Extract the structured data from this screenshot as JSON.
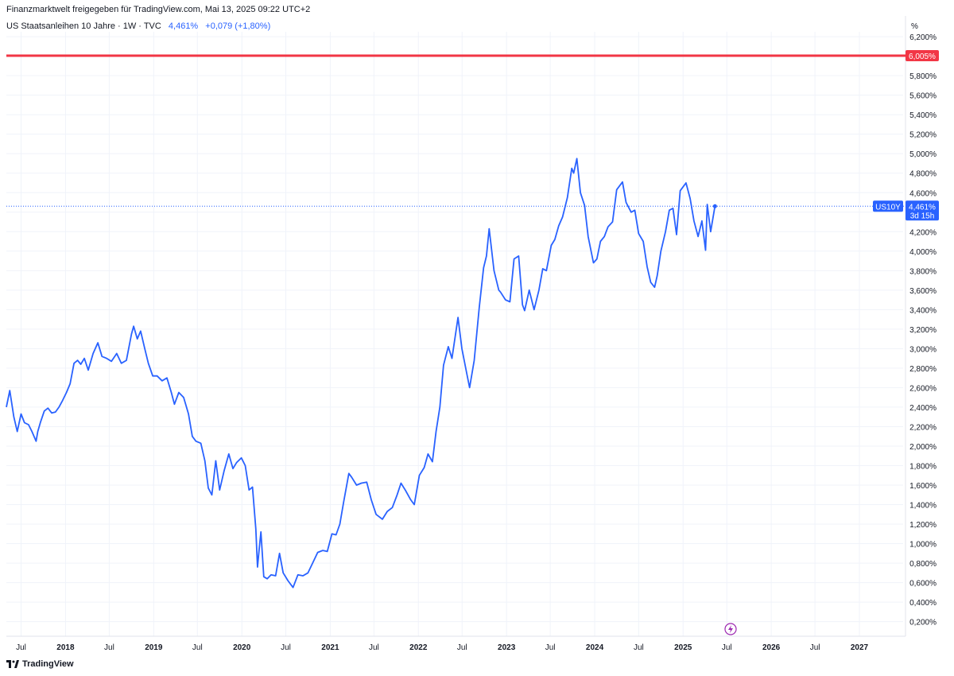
{
  "header": {
    "attribution": "Finanzmarktwelt freigegeben für TradingView.com, Mai 13, 2025 09:22 UTC+2",
    "symbol": "US Staatsanleihen 10 Jahre · 1W · TVC",
    "last_value": "4,461%",
    "change": "+0,079 (+1,80%)"
  },
  "footer": {
    "logo_text": "TradingView"
  },
  "colors": {
    "line": "#2962ff",
    "resistance": "#f23645",
    "grid": "#f0f3fa",
    "last_label_bg": "#2962ff"
  },
  "chart_data": {
    "type": "line",
    "unit_label": "%",
    "ylim": [
      0.05,
      6.25
    ],
    "y_ticks": [
      "0,200%",
      "0,400%",
      "0,600%",
      "0,800%",
      "1,000%",
      "1,200%",
      "1,400%",
      "1,600%",
      "1,800%",
      "2,000%",
      "2,200%",
      "2,400%",
      "2,600%",
      "2,800%",
      "3,000%",
      "3,200%",
      "3,400%",
      "3,600%",
      "3,800%",
      "4,000%",
      "4,200%",
      "4,400%",
      "4,600%",
      "4,800%",
      "5,000%",
      "5,200%",
      "5,400%",
      "5,600%",
      "5,800%",
      "6,200%"
    ],
    "y_tick_values": [
      0.2,
      0.4,
      0.6,
      0.8,
      1.0,
      1.2,
      1.4,
      1.6,
      1.8,
      2.0,
      2.2,
      2.4,
      2.6,
      2.8,
      3.0,
      3.2,
      3.4,
      3.6,
      3.8,
      4.0,
      4.2,
      4.4,
      4.6,
      4.8,
      5.0,
      5.2,
      5.4,
      5.6,
      5.8,
      6.2
    ],
    "x_ticks": [
      "Jul",
      "2018",
      "Jul",
      "2019",
      "Jul",
      "2020",
      "Jul",
      "2021",
      "Jul",
      "2022",
      "Jul",
      "2023",
      "Jul",
      "2024",
      "Jul",
      "2025",
      "Jul",
      "2026",
      "Jul",
      "2027"
    ],
    "x_tick_values": [
      "2017-07-01",
      "2018-01-01",
      "2018-07-01",
      "2019-01-01",
      "2019-07-01",
      "2020-01-01",
      "2020-07-01",
      "2021-01-01",
      "2021-07-01",
      "2022-01-01",
      "2022-07-01",
      "2023-01-01",
      "2023-07-01",
      "2024-01-01",
      "2024-07-01",
      "2025-01-01",
      "2025-07-01",
      "2026-01-01",
      "2026-07-01",
      "2027-01-01"
    ],
    "horizontal_line": {
      "value": 6.005,
      "label": "6,005%"
    },
    "last_point_label": {
      "symbol": "US10Y",
      "value": "4,461%",
      "countdown": "3d 15h",
      "y": 4.461
    },
    "series": [
      {
        "x": [
          "2017-05-01",
          "2017-05-15",
          "2017-06-01",
          "2017-06-15",
          "2017-07-01",
          "2017-07-15",
          "2017-08-01",
          "2017-08-15",
          "2017-09-01",
          "2017-09-08",
          "2017-09-20",
          "2017-10-05",
          "2017-10-20",
          "2017-11-05",
          "2017-11-20",
          "2017-12-05",
          "2017-12-20",
          "2018-01-05",
          "2018-01-20",
          "2018-02-05",
          "2018-02-20",
          "2018-03-05",
          "2018-03-20",
          "2018-04-05",
          "2018-04-25",
          "2018-05-15",
          "2018-06-01",
          "2018-06-20",
          "2018-07-10",
          "2018-08-01",
          "2018-08-20",
          "2018-09-10",
          "2018-10-01",
          "2018-10-10",
          "2018-10-25",
          "2018-11-08",
          "2018-11-25",
          "2018-12-10",
          "2018-12-28",
          "2019-01-15",
          "2019-02-05",
          "2019-02-25",
          "2019-03-15",
          "2019-03-28",
          "2019-04-15",
          "2019-05-05",
          "2019-05-25",
          "2019-06-10",
          "2019-06-25",
          "2019-07-15",
          "2019-08-01",
          "2019-08-15",
          "2019-08-30",
          "2019-09-15",
          "2019-10-01",
          "2019-10-20",
          "2019-11-08",
          "2019-11-25",
          "2019-12-10",
          "2019-12-30",
          "2020-01-15",
          "2020-01-31",
          "2020-02-14",
          "2020-02-28",
          "2020-03-06",
          "2020-03-13",
          "2020-03-20",
          "2020-04-01",
          "2020-04-15",
          "2020-05-01",
          "2020-05-20",
          "2020-06-05",
          "2020-06-20",
          "2020-07-10",
          "2020-07-31",
          "2020-08-20",
          "2020-09-10",
          "2020-10-01",
          "2020-10-20",
          "2020-11-10",
          "2020-12-01",
          "2020-12-20",
          "2021-01-08",
          "2021-01-25",
          "2021-02-10",
          "2021-02-25",
          "2021-03-19",
          "2021-03-31",
          "2021-04-20",
          "2021-05-10",
          "2021-06-01",
          "2021-06-20",
          "2021-07-10",
          "2021-07-20",
          "2021-08-05",
          "2021-08-25",
          "2021-09-15",
          "2021-10-05",
          "2021-10-21",
          "2021-11-10",
          "2021-11-30",
          "2021-12-15",
          "2022-01-05",
          "2022-01-25",
          "2022-02-10",
          "2022-02-28",
          "2022-03-15",
          "2022-03-31",
          "2022-04-15",
          "2022-05-05",
          "2022-05-20",
          "2022-06-14",
          "2022-06-30",
          "2022-07-20",
          "2022-08-01",
          "2022-08-20",
          "2022-09-10",
          "2022-09-28",
          "2022-10-10",
          "2022-10-21",
          "2022-11-10",
          "2022-11-30",
          "2022-12-07",
          "2022-12-28",
          "2023-01-15",
          "2023-02-01",
          "2023-02-20",
          "2023-03-08",
          "2023-03-17",
          "2023-04-05",
          "2023-04-25",
          "2023-05-15",
          "2023-05-31",
          "2023-06-15",
          "2023-07-05",
          "2023-07-20",
          "2023-08-05",
          "2023-08-21",
          "2023-09-10",
          "2023-09-28",
          "2023-10-06",
          "2023-10-19",
          "2023-11-03",
          "2023-11-20",
          "2023-12-05",
          "2023-12-27",
          "2024-01-10",
          "2024-01-25",
          "2024-02-10",
          "2024-02-25",
          "2024-03-15",
          "2024-04-01",
          "2024-04-25",
          "2024-05-10",
          "2024-05-31",
          "2024-06-15",
          "2024-07-01",
          "2024-07-20",
          "2024-08-05",
          "2024-08-20",
          "2024-09-05",
          "2024-09-16",
          "2024-10-01",
          "2024-10-20",
          "2024-11-05",
          "2024-11-20",
          "2024-12-05",
          "2024-12-20",
          "2025-01-13",
          "2025-01-30",
          "2025-02-15",
          "2025-03-04",
          "2025-03-20",
          "2025-04-04",
          "2025-04-11",
          "2025-04-25",
          "2025-05-13"
        ],
        "values": [
          2.4,
          2.57,
          2.3,
          2.15,
          2.33,
          2.24,
          2.22,
          2.15,
          2.05,
          2.15,
          2.25,
          2.36,
          2.39,
          2.34,
          2.35,
          2.4,
          2.47,
          2.55,
          2.64,
          2.85,
          2.88,
          2.84,
          2.9,
          2.78,
          2.95,
          3.06,
          2.92,
          2.9,
          2.87,
          2.95,
          2.85,
          2.88,
          3.15,
          3.23,
          3.1,
          3.18,
          3.0,
          2.85,
          2.72,
          2.72,
          2.67,
          2.7,
          2.55,
          2.43,
          2.55,
          2.5,
          2.33,
          2.1,
          2.05,
          2.03,
          1.85,
          1.57,
          1.5,
          1.85,
          1.55,
          1.75,
          1.92,
          1.77,
          1.83,
          1.88,
          1.8,
          1.55,
          1.58,
          1.15,
          0.76,
          0.95,
          1.12,
          0.66,
          0.64,
          0.68,
          0.67,
          0.9,
          0.7,
          0.62,
          0.55,
          0.68,
          0.67,
          0.7,
          0.8,
          0.91,
          0.93,
          0.92,
          1.1,
          1.09,
          1.2,
          1.42,
          1.72,
          1.68,
          1.6,
          1.62,
          1.63,
          1.45,
          1.3,
          1.28,
          1.25,
          1.33,
          1.37,
          1.5,
          1.62,
          1.54,
          1.45,
          1.4,
          1.7,
          1.78,
          1.92,
          1.84,
          2.15,
          2.4,
          2.83,
          3.02,
          2.9,
          3.32,
          3.0,
          2.75,
          2.6,
          2.88,
          3.42,
          3.83,
          3.95,
          4.23,
          3.8,
          3.6,
          3.58,
          3.5,
          3.48,
          3.92,
          3.95,
          3.45,
          3.39,
          3.6,
          3.4,
          3.6,
          3.82,
          3.8,
          4.06,
          4.12,
          4.26,
          4.35,
          4.55,
          4.85,
          4.8,
          4.95,
          4.6,
          4.47,
          4.15,
          3.88,
          3.92,
          4.1,
          4.15,
          4.25,
          4.3,
          4.63,
          4.71,
          4.5,
          4.4,
          4.42,
          4.18,
          4.1,
          3.84,
          3.68,
          3.63,
          3.75,
          4.0,
          4.2,
          4.42,
          4.44,
          4.17,
          4.62,
          4.7,
          4.54,
          4.31,
          4.15,
          4.31,
          4.01,
          4.48,
          4.2,
          4.461
        ]
      }
    ]
  }
}
